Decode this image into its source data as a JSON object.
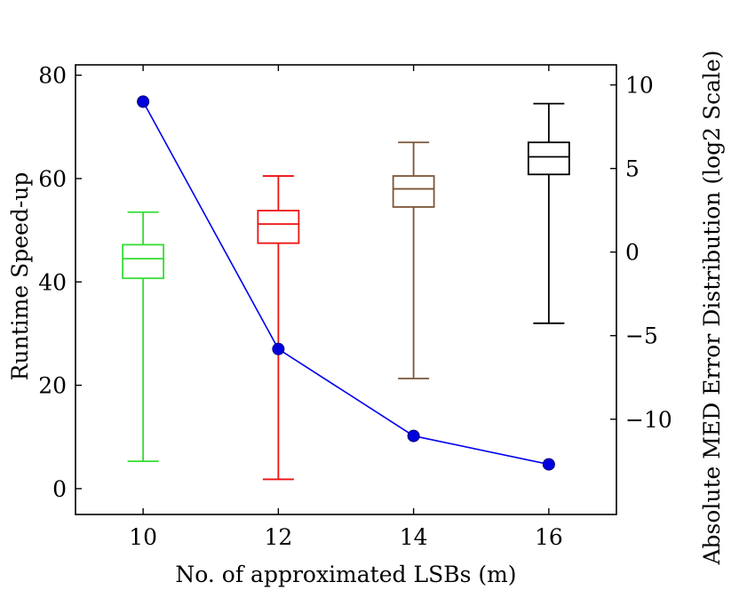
{
  "chart_data": {
    "type": "box",
    "xlabel": "No. of approximated LSBs (m)",
    "ylabel": "Runtime Speed-up",
    "y2label": "Absolute MED Error Distribution (log2 Scale)",
    "x_ticks": [
      "10",
      "12",
      "14",
      "16"
    ],
    "y_ticks": [
      "0",
      "20",
      "40",
      "60",
      "80"
    ],
    "y2_ticks": [
      "10",
      "5",
      "0",
      "−5",
      "−10"
    ],
    "xlim": [
      9,
      17
    ],
    "ylim": [
      -5,
      82
    ],
    "y2lim": [
      -15.7,
      11.2
    ],
    "box_series": [
      {
        "x": 10,
        "min": 5.3,
        "q1": 40.7,
        "median": 44.5,
        "q3": 47.2,
        "max": 53.5,
        "color": "#33dd33"
      },
      {
        "x": 12,
        "min": 1.8,
        "q1": 47.5,
        "median": 51.2,
        "q3": 53.8,
        "max": 60.5,
        "color": "#ee1111"
      },
      {
        "x": 14,
        "min": 21.3,
        "q1": 54.5,
        "median": 58.0,
        "q3": 60.5,
        "max": 67.0,
        "color": "#7b5538"
      },
      {
        "x": 16,
        "min": 32.0,
        "q1": 60.8,
        "median": 64.2,
        "q3": 67.0,
        "max": 74.5,
        "color": "#000000"
      }
    ],
    "line_series": {
      "axis": "right",
      "color": "#0000ee",
      "marker_color": "#0000dd",
      "x": [
        10,
        12,
        14,
        16
      ],
      "y": [
        9.0,
        -5.8,
        -11.0,
        -12.7
      ]
    }
  }
}
